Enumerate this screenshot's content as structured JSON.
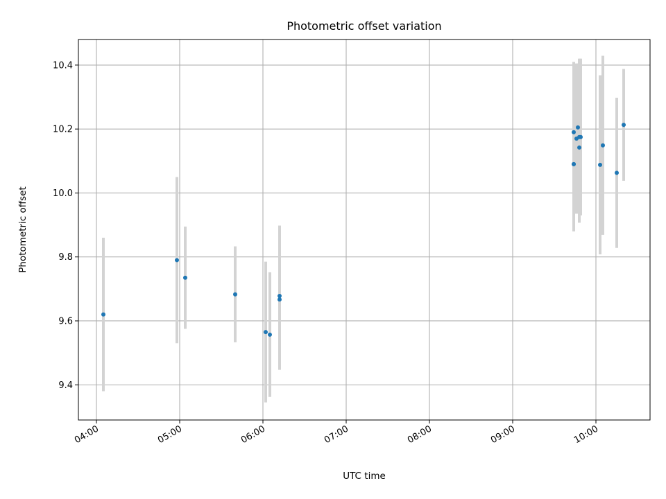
{
  "chart_data": {
    "type": "scatter",
    "title": "Photometric offset variation",
    "xlabel": "UTC time",
    "ylabel": "Photometric offset",
    "x_axis": "time",
    "xlim": [
      "03:47",
      "10:39"
    ],
    "ylim": [
      9.29,
      10.48
    ],
    "x_ticks": [
      "04:00",
      "05:00",
      "06:00",
      "07:00",
      "08:00",
      "09:00",
      "10:00"
    ],
    "y_ticks": [
      9.4,
      9.6,
      9.8,
      10.0,
      10.2,
      10.4
    ],
    "y_tick_labels": [
      "9.4",
      "9.6",
      "9.8",
      "10.0",
      "10.2",
      "10.4"
    ],
    "grid": true,
    "point_color": "#1f77b4",
    "errorbar_color": "#d3d3d3",
    "points": [
      {
        "x": "04:05",
        "y": 9.62,
        "err": 0.24
      },
      {
        "x": "04:58",
        "y": 9.79,
        "err": 0.26
      },
      {
        "x": "05:04",
        "y": 9.735,
        "err": 0.16
      },
      {
        "x": "05:40",
        "y": 9.683,
        "err": 0.15
      },
      {
        "x": "06:02",
        "y": 9.565,
        "err": 0.22
      },
      {
        "x": "06:05",
        "y": 9.557,
        "err": 0.195
      },
      {
        "x": "06:12",
        "y": 9.678,
        "err": 0.22
      },
      {
        "x": "06:12",
        "y": 9.667,
        "err": 0.22
      },
      {
        "x": "09:44",
        "y": 10.09,
        "err": 0.21
      },
      {
        "x": "09:44",
        "y": 10.09,
        "err": 0.21
      },
      {
        "x": "09:44",
        "y": 10.19,
        "err": 0.22
      },
      {
        "x": "09:46",
        "y": 10.17,
        "err": 0.235
      },
      {
        "x": "09:47",
        "y": 10.205,
        "err": 0.2
      },
      {
        "x": "09:48",
        "y": 10.175,
        "err": 0.245
      },
      {
        "x": "09:48",
        "y": 10.142,
        "err": 0.235
      },
      {
        "x": "09:49",
        "y": 10.175,
        "err": 0.245
      },
      {
        "x": "10:03",
        "y": 10.088,
        "err": 0.28
      },
      {
        "x": "10:05",
        "y": 10.149,
        "err": 0.28
      },
      {
        "x": "10:15",
        "y": 10.063,
        "err": 0.235
      },
      {
        "x": "10:20",
        "y": 10.213,
        "err": 0.175
      }
    ]
  }
}
